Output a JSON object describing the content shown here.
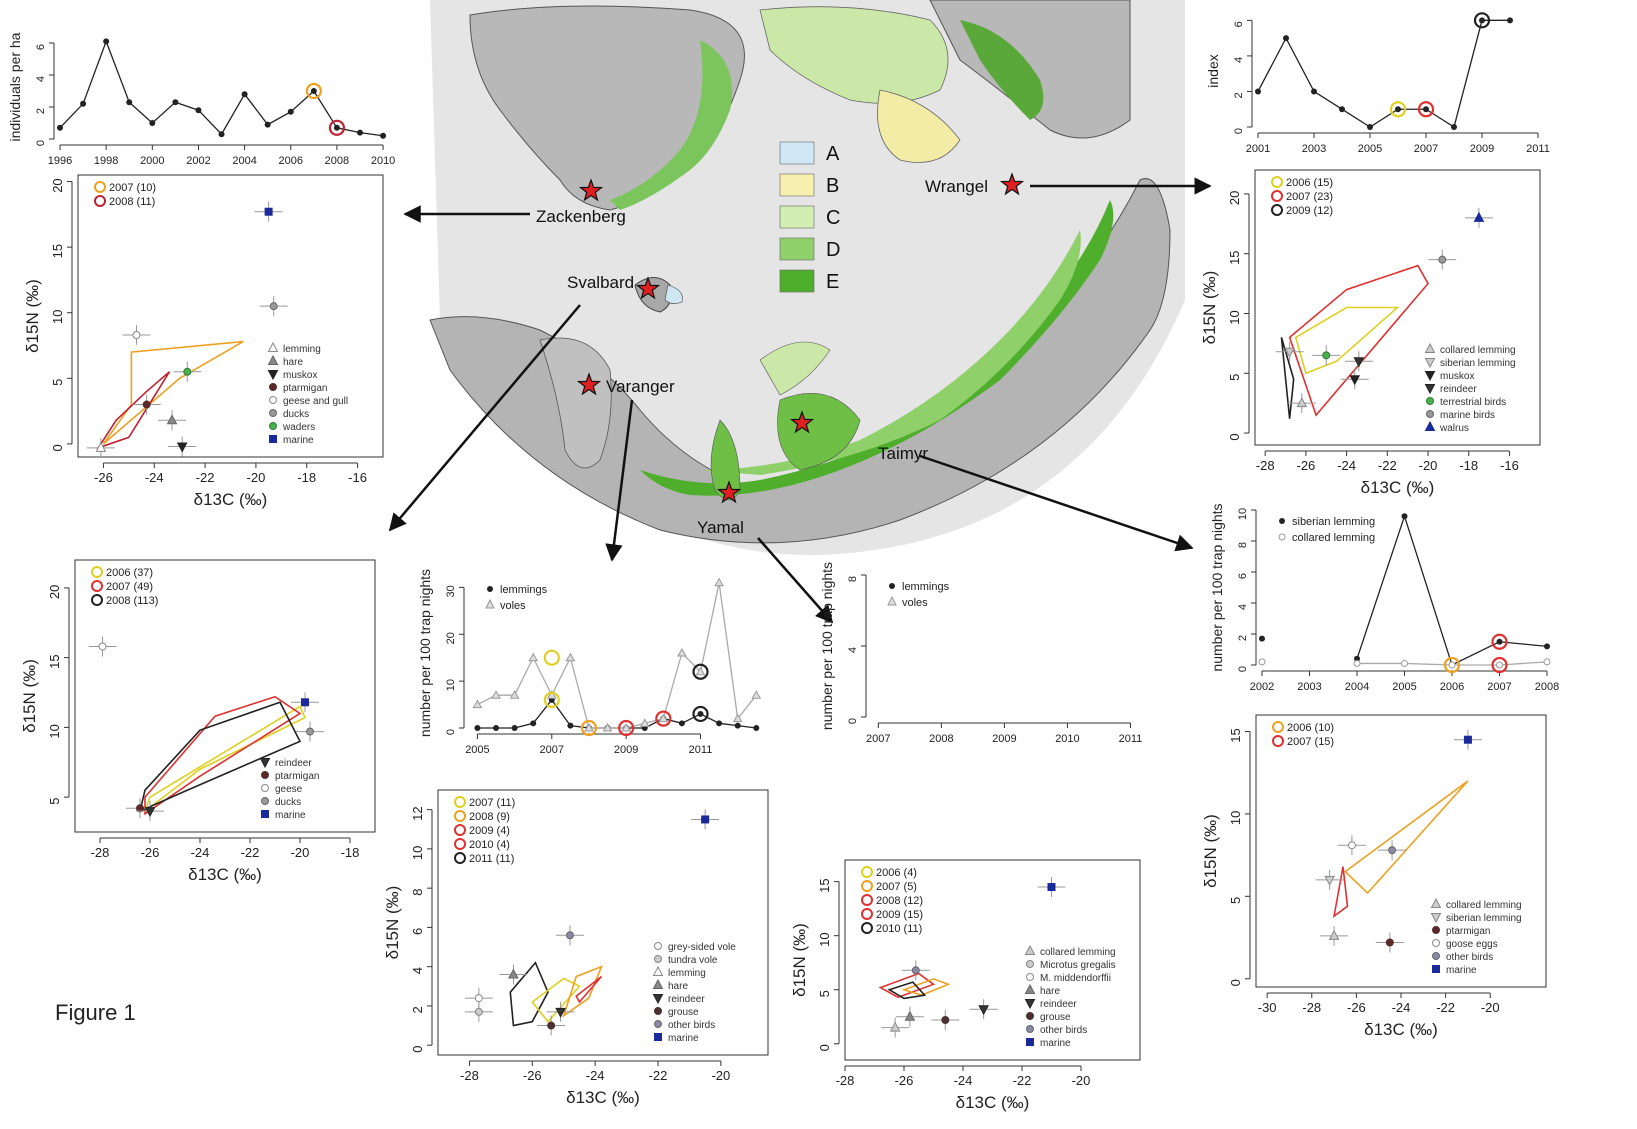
{
  "figure_label": "Figure 1",
  "map": {
    "legend": {
      "A": "#cfe6f3",
      "B": "#f5f0b0",
      "C": "#d2eeb2",
      "D": "#8fd06a",
      "E": "#4fae2c"
    },
    "sites": [
      "Zackenberg",
      "Wrangel",
      "Svalbard",
      "Varanger",
      "Yamal",
      "Taimyr"
    ]
  },
  "colors": {
    "y2006": "#e0d020",
    "y2007": "#f0a020",
    "y2008": "#c02030",
    "red": "#e03030",
    "black": "#222222",
    "marine": "#1a2a9a",
    "grey": "#888888"
  },
  "chart_data": [
    {
      "id": "zack_ts",
      "type": "line",
      "ylabel": "individuals per ha",
      "x": [
        1996,
        1997,
        1998,
        1999,
        2000,
        2001,
        2002,
        2003,
        2004,
        2005,
        2006,
        2007,
        2008,
        2009,
        2010
      ],
      "series": [
        {
          "values": [
            0.7,
            2.2,
            6.1,
            2.3,
            1.0,
            2.3,
            1.8,
            0.3,
            2.8,
            0.9,
            1.7,
            3.0,
            0.7,
            0.4,
            0.2
          ]
        }
      ],
      "xticks": [
        1996,
        1998,
        2000,
        2002,
        2004,
        2006,
        2008,
        2010
      ],
      "yticks": [
        0,
        2,
        4,
        6
      ],
      "xlim": [
        1996,
        2010.3
      ],
      "ylim": [
        0,
        6.5
      ],
      "highlight": [
        {
          "x": 2007,
          "color": "y2007"
        },
        {
          "x": 2008,
          "color": "y2008"
        }
      ]
    },
    {
      "id": "zack_iso",
      "type": "scatter",
      "xlabel": "δ13C (‰)",
      "ylabel": "δ15N (‰)",
      "xlim": [
        -27,
        -15
      ],
      "ylim": [
        -1,
        20.5
      ],
      "xticks": [
        -26,
        -24,
        -22,
        -20,
        -18,
        -16
      ],
      "yticks": [
        0,
        5,
        10,
        15,
        20
      ],
      "legend_years": [
        {
          "label": "2007 (10)",
          "color": "y2007"
        },
        {
          "label": "2008 (11)",
          "color": "y2008"
        }
      ],
      "legend_species": [
        "lemming",
        "hare",
        "muskox",
        "ptarmigan",
        "geese and gull",
        "ducks",
        "waders",
        "marine"
      ],
      "points": [
        [
          -19.5,
          17.7,
          "marine"
        ],
        [
          -19.3,
          10.5,
          "ducks"
        ],
        [
          -24.7,
          8.3,
          "geese"
        ],
        [
          -22.7,
          5.5,
          "waders"
        ],
        [
          -26.1,
          -0.3,
          "lemming"
        ],
        [
          -24.3,
          3.0,
          "ptarmigan"
        ],
        [
          -23.3,
          1.8,
          "hare"
        ],
        [
          -22.9,
          -0.2,
          "muskox"
        ]
      ]
    },
    {
      "id": "wrangel_ts",
      "type": "line",
      "ylabel": "index",
      "x": [
        2001,
        2002,
        2003,
        2004,
        2005,
        2006,
        2007,
        2008,
        2009,
        2010
      ],
      "series": [
        {
          "values": [
            2,
            5,
            2,
            1,
            0,
            1,
            1,
            0,
            6,
            6
          ]
        }
      ],
      "xticks": [
        2001,
        2003,
        2005,
        2007,
        2009,
        2011
      ],
      "yticks": [
        0,
        2,
        4,
        6
      ],
      "xlim": [
        2001,
        2011
      ],
      "ylim": [
        0,
        6.3
      ],
      "highlight": [
        {
          "x": 2006,
          "color": "y2006"
        },
        {
          "x": 2007,
          "color": "red"
        },
        {
          "x": 2009,
          "color": "black"
        }
      ]
    },
    {
      "id": "wrangel_iso",
      "type": "scatter",
      "xlabel": "δ13C (‰)",
      "ylabel": "δ15N (‰)",
      "xlim": [
        -28.5,
        -14.5
      ],
      "ylim": [
        -1,
        22
      ],
      "xticks": [
        -28,
        -26,
        -24,
        -22,
        -20,
        -18,
        -16
      ],
      "yticks": [
        0,
        5,
        10,
        15,
        20
      ],
      "legend_years": [
        {
          "label": "2006 (15)",
          "color": "y2006"
        },
        {
          "label": "2007 (23)",
          "color": "red"
        },
        {
          "label": "2009 (12)",
          "color": "black"
        }
      ],
      "legend_species": [
        "collared lemming",
        "siberian lemming",
        "muskox",
        "reindeer",
        "terrestrial birds",
        "marine birds",
        "walrus"
      ],
      "points": [
        [
          -17.5,
          18.0,
          "walrus"
        ],
        [
          -19.3,
          14.5,
          "marinebirds"
        ],
        [
          -25.0,
          6.5,
          "terrbirds"
        ],
        [
          -23.6,
          4.5,
          "muskox"
        ],
        [
          -23.4,
          6.0,
          "reindeer"
        ],
        [
          -26.8,
          6.8,
          "siblem"
        ],
        [
          -26.2,
          2.5,
          "collem"
        ]
      ]
    },
    {
      "id": "svalbard_iso",
      "type": "scatter",
      "xlabel": "δ13C (‰)",
      "ylabel": "δ15N (‰)",
      "xlim": [
        -29,
        -17
      ],
      "ylim": [
        2.5,
        22
      ],
      "xticks": [
        -28,
        -26,
        -24,
        -22,
        -20,
        -18
      ],
      "yticks": [
        5,
        10,
        15,
        20
      ],
      "legend_years": [
        {
          "label": "2006 (37)",
          "color": "y2006"
        },
        {
          "label": "2007 (49)",
          "color": "red"
        },
        {
          "label": "2008 (113)",
          "color": "black"
        }
      ],
      "legend_species": [
        "reindeer",
        "ptarmigan",
        "geese",
        "ducks",
        "marine"
      ],
      "points": [
        [
          -27.9,
          15.8,
          "geese"
        ],
        [
          -19.8,
          11.8,
          "marine"
        ],
        [
          -19.6,
          9.7,
          "ducks"
        ],
        [
          -26.4,
          4.2,
          "ptarmigan"
        ],
        [
          -26.0,
          4.0,
          "reindeer"
        ]
      ]
    },
    {
      "id": "varanger_ts",
      "type": "line",
      "ylabel": "number per 100 trap nights",
      "legend": [
        {
          "name": "lemmings",
          "marker": "filled"
        },
        {
          "name": "voles",
          "marker": "triangle"
        }
      ],
      "x": [
        2005,
        2005.5,
        2006,
        2006.5,
        2007,
        2007.5,
        2008,
        2008.5,
        2009,
        2009.5,
        2010,
        2010.5,
        2011,
        2011.5,
        2012,
        2012.5
      ],
      "series": [
        {
          "name": "lemmings",
          "values": [
            0,
            0,
            0,
            1,
            6,
            0.5,
            0,
            0,
            0,
            0,
            2,
            1,
            3,
            1,
            0.5,
            0
          ]
        },
        {
          "name": "voles",
          "values": [
            5,
            7,
            7,
            15,
            7,
            15,
            0,
            0,
            0,
            1,
            2,
            16,
            12,
            31,
            2,
            7
          ]
        }
      ],
      "xticks": [
        2005,
        2007,
        2009,
        2011
      ],
      "yticks": [
        0,
        10,
        20,
        30
      ],
      "xlim": [
        2004.8,
        2012.6
      ],
      "ylim": [
        0,
        32
      ],
      "highlight": [
        {
          "x": 2007,
          "y": 15,
          "color": "y2006"
        },
        {
          "x": 2007,
          "y": 6,
          "color": "y2006"
        },
        {
          "x": 2008,
          "y": 0,
          "color": "y2007"
        },
        {
          "x": 2009,
          "y": 0,
          "color": "red"
        },
        {
          "x": 2010,
          "y": 2,
          "color": "red"
        },
        {
          "x": 2011,
          "y": 12,
          "color": "black"
        },
        {
          "x": 2011,
          "y": 3,
          "color": "black"
        }
      ]
    },
    {
      "id": "varanger_iso",
      "type": "scatter",
      "xlabel": "δ13C (‰)",
      "ylabel": "δ15N (‰)",
      "xlim": [
        -29,
        -18.5
      ],
      "ylim": [
        -0.5,
        13
      ],
      "xticks": [
        -28,
        -26,
        -24,
        -22,
        -20
      ],
      "yticks": [
        0,
        2,
        4,
        6,
        8,
        10,
        12
      ],
      "legend_years": [
        {
          "label": "2007 (11)",
          "color": "y2006"
        },
        {
          "label": "2008 (9)",
          "color": "y2007"
        },
        {
          "label": "2009 (4)",
          "color": "red"
        },
        {
          "label": "2010 (4)",
          "color": "red"
        },
        {
          "label": "2011 (11)",
          "color": "black"
        }
      ],
      "legend_species": [
        "grey-sided vole",
        "tundra vole",
        "lemming",
        "hare",
        "reindeer",
        "grouse",
        "other birds",
        "marine"
      ],
      "points": [
        [
          -20.5,
          11.5,
          "marine"
        ],
        [
          -24.8,
          5.6,
          "otherbirds"
        ],
        [
          -27.7,
          2.4,
          "greyvole"
        ],
        [
          -27.7,
          1.7,
          "tundravole"
        ],
        [
          -26.6,
          3.6,
          "hare"
        ],
        [
          -25.4,
          1.0,
          "grouse"
        ],
        [
          -25.1,
          1.7,
          "reindeer"
        ]
      ]
    },
    {
      "id": "yamal_ts",
      "type": "line",
      "ylabel": "number per 100 trap nights",
      "legend": [
        {
          "name": "lemmings",
          "marker": "filled"
        },
        {
          "name": "voles",
          "marker": "triangle"
        }
      ],
      "x": [
        2007,
        2008,
        2009,
        2010,
        2011
      ],
      "series": [],
      "xticks": [
        2007,
        2008,
        2009,
        2010,
        2011
      ],
      "yticks": [
        0,
        4,
        8
      ],
      "xlim": [
        2006.9,
        2011.5
      ],
      "ylim": [
        0,
        8
      ]
    },
    {
      "id": "yamal_iso",
      "type": "scatter",
      "xlabel": "δ13C (‰)",
      "ylabel": "δ15N (‰)",
      "xlim": [
        -28,
        -18
      ],
      "ylim": [
        -1.5,
        17
      ],
      "xticks": [
        -28,
        -26,
        -24,
        -22,
        -20
      ],
      "yticks": [
        0,
        5,
        10,
        15
      ],
      "legend_years": [
        {
          "label": "2006 (4)",
          "color": "y2006"
        },
        {
          "label": "2007 (5)",
          "color": "y2007"
        },
        {
          "label": "2008 (12)",
          "color": "red"
        },
        {
          "label": "2009 (15)",
          "color": "red"
        },
        {
          "label": "2010 (11)",
          "color": "black"
        }
      ],
      "legend_species": [
        "collared lemming",
        "Microtus gregalis",
        "M. middendorffii",
        "hare",
        "reindeer",
        "grouse",
        "other birds",
        "marine"
      ],
      "points": [
        [
          -21.0,
          14.5,
          "marine"
        ],
        [
          -25.6,
          6.8,
          "otherbirds"
        ],
        [
          -26.3,
          1.5,
          "collem"
        ],
        [
          -25.8,
          2.5,
          "hare"
        ],
        [
          -24.6,
          2.2,
          "grouse"
        ],
        [
          -23.3,
          3.2,
          "reindeer"
        ]
      ]
    },
    {
      "id": "taimyr_ts",
      "type": "line",
      "ylabel": "number per 100 trap nights",
      "legend": [
        {
          "name": "siberian lemming",
          "marker": "filled"
        },
        {
          "name": "collared lemming",
          "marker": "open"
        }
      ],
      "x": [
        2002,
        2003,
        2004,
        2005,
        2006,
        2007,
        2008
      ],
      "series": [
        {
          "name": "siberian lemming",
          "values": [
            1.7,
            null,
            0.4,
            9.6,
            0.0,
            1.5,
            1.2
          ]
        },
        {
          "name": "collared lemming",
          "values": [
            0.2,
            null,
            0.1,
            0.1,
            0.0,
            0.0,
            0.2
          ]
        }
      ],
      "xticks": [
        2002,
        2003,
        2004,
        2005,
        2006,
        2007,
        2008
      ],
      "yticks": [
        0,
        2,
        4,
        6,
        8,
        10
      ],
      "xlim": [
        2002,
        2008
      ],
      "ylim": [
        0,
        10
      ],
      "highlight": [
        {
          "x": 2006,
          "y": 0,
          "color": "y2007"
        },
        {
          "x": 2007,
          "y": 1.5,
          "color": "red"
        },
        {
          "x": 2007,
          "y": 0,
          "color": "red"
        }
      ]
    },
    {
      "id": "taimyr_iso",
      "type": "scatter",
      "xlabel": "δ13C (‰)",
      "ylabel": "δ15N (‰)",
      "xlim": [
        -30.5,
        -17.5
      ],
      "ylim": [
        -0.5,
        16
      ],
      "xticks": [
        -30,
        -28,
        -26,
        -24,
        -22,
        -20
      ],
      "yticks": [
        0,
        5,
        10,
        15
      ],
      "legend_years": [
        {
          "label": "2006 (10)",
          "color": "y2007"
        },
        {
          "label": "2007 (15)",
          "color": "red"
        }
      ],
      "legend_species": [
        "collared lemming",
        "siberian lemming",
        "ptarmigan",
        "goose eggs",
        "other birds",
        "marine"
      ],
      "points": [
        [
          -21.0,
          14.5,
          "marine"
        ],
        [
          -26.2,
          8.1,
          "gooseeggs"
        ],
        [
          -24.4,
          7.8,
          "otherbirds"
        ],
        [
          -27.2,
          6.0,
          "siblem"
        ],
        [
          -27.0,
          2.6,
          "collem"
        ],
        [
          -24.5,
          2.2,
          "ptarmigan"
        ]
      ]
    }
  ]
}
